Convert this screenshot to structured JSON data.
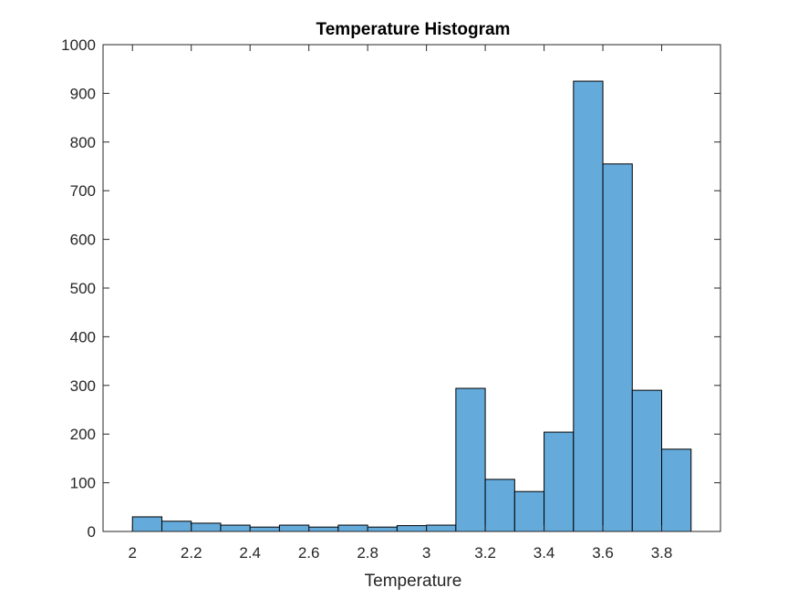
{
  "chart_data": {
    "type": "bar",
    "title": "Temperature Histogram",
    "xlabel": "Temperature",
    "ylabel": "",
    "xlim": [
      1.9,
      4.0
    ],
    "ylim": [
      0,
      1000
    ],
    "grid": false,
    "legend": "none",
    "bar_color": "#64aadb",
    "edge_color": "#000000",
    "bin_width": 0.1,
    "bin_starts": [
      2.0,
      2.1,
      2.2,
      2.3,
      2.4,
      2.5,
      2.6,
      2.7,
      2.8,
      2.9,
      3.0,
      3.1,
      3.2,
      3.3,
      3.4,
      3.5,
      3.6,
      3.7,
      3.8
    ],
    "values": [
      30,
      21,
      17,
      13,
      9,
      13,
      9,
      13,
      9,
      12,
      13,
      294,
      107,
      82,
      204,
      925,
      755,
      290,
      169
    ],
    "xticks": [
      2,
      2.2,
      2.4,
      2.6,
      2.8,
      3,
      3.2,
      3.4,
      3.6,
      3.8
    ],
    "xtick_labels": [
      "2",
      "2.2",
      "2.4",
      "2.6",
      "2.8",
      "3",
      "3.2",
      "3.4",
      "3.6",
      "3.8"
    ],
    "yticks": [
      0,
      100,
      200,
      300,
      400,
      500,
      600,
      700,
      800,
      900,
      1000
    ],
    "ytick_labels": [
      "0",
      "100",
      "200",
      "300",
      "400",
      "500",
      "600",
      "700",
      "800",
      "900",
      "1000"
    ]
  }
}
